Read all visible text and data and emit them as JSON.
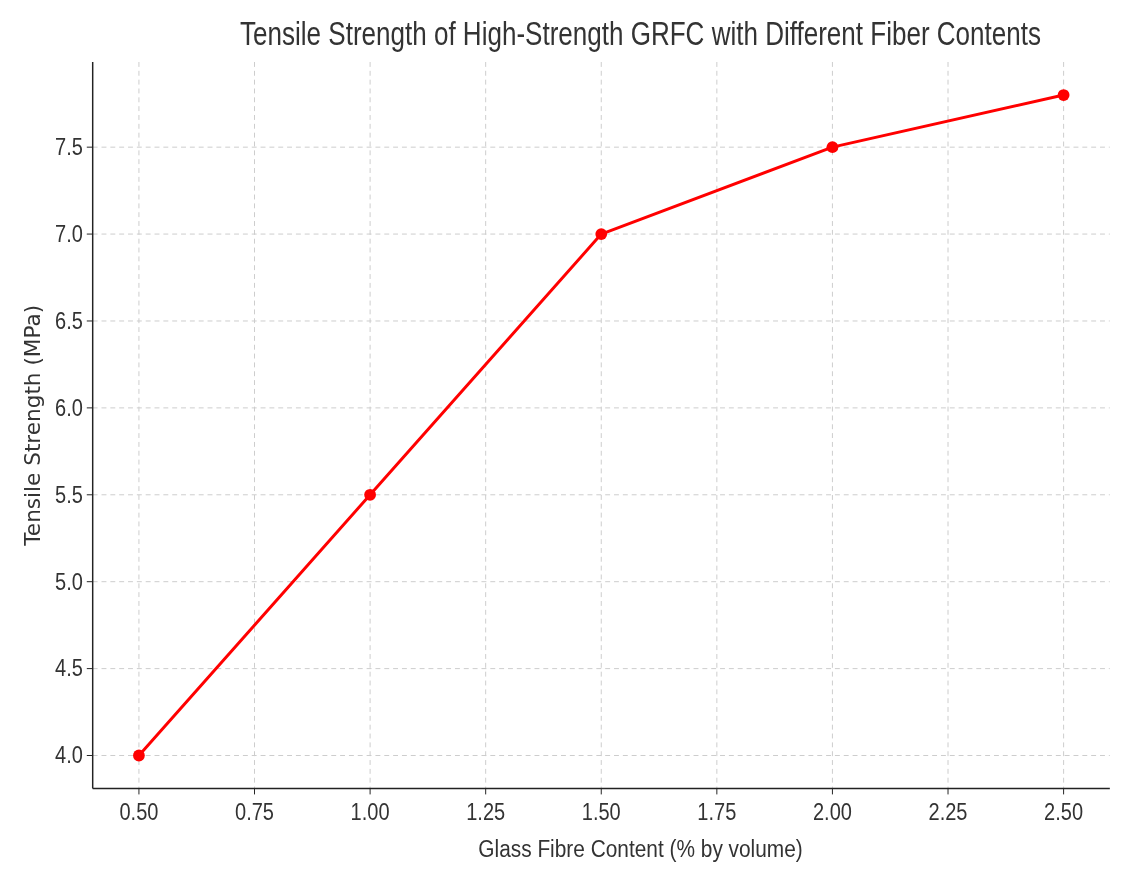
{
  "chart_data": {
    "type": "line",
    "title": "Tensile Strength of High-Strength GRFC with Different Fiber Contents",
    "xlabel": "Glass Fibre Content (% by volume)",
    "ylabel": "Tensile Strength (MPa)",
    "x": [
      0.5,
      1.0,
      1.5,
      2.0,
      2.5
    ],
    "series": [
      {
        "color": "#ff0000",
        "values": [
          4.0,
          5.5,
          7.0,
          7.5,
          7.8
        ]
      }
    ],
    "xlim": [
      0.4,
      2.6
    ],
    "ylim": [
      3.81,
      7.99
    ],
    "xticks": [
      {
        "value": 0.5,
        "label": "0.50"
      },
      {
        "value": 0.75,
        "label": "0.75"
      },
      {
        "value": 1.0,
        "label": "1.00"
      },
      {
        "value": 1.25,
        "label": "1.25"
      },
      {
        "value": 1.5,
        "label": "1.50"
      },
      {
        "value": 1.75,
        "label": "1.75"
      },
      {
        "value": 2.0,
        "label": "2.00"
      },
      {
        "value": 2.25,
        "label": "2.25"
      },
      {
        "value": 2.5,
        "label": "2.50"
      }
    ],
    "yticks": [
      {
        "value": 4,
        "label": "4.0"
      },
      {
        "value": 4.5,
        "label": "4.5"
      },
      {
        "value": 5,
        "label": "5.0"
      },
      {
        "value": 5.5,
        "label": "5.5"
      },
      {
        "value": 6,
        "label": "6.0"
      },
      {
        "value": 6.5,
        "label": "6.5"
      },
      {
        "value": 7,
        "label": "7.0"
      },
      {
        "value": 7.5,
        "label": "7.5"
      }
    ],
    "grid": true,
    "marker": "circle",
    "line_style": "solid"
  }
}
